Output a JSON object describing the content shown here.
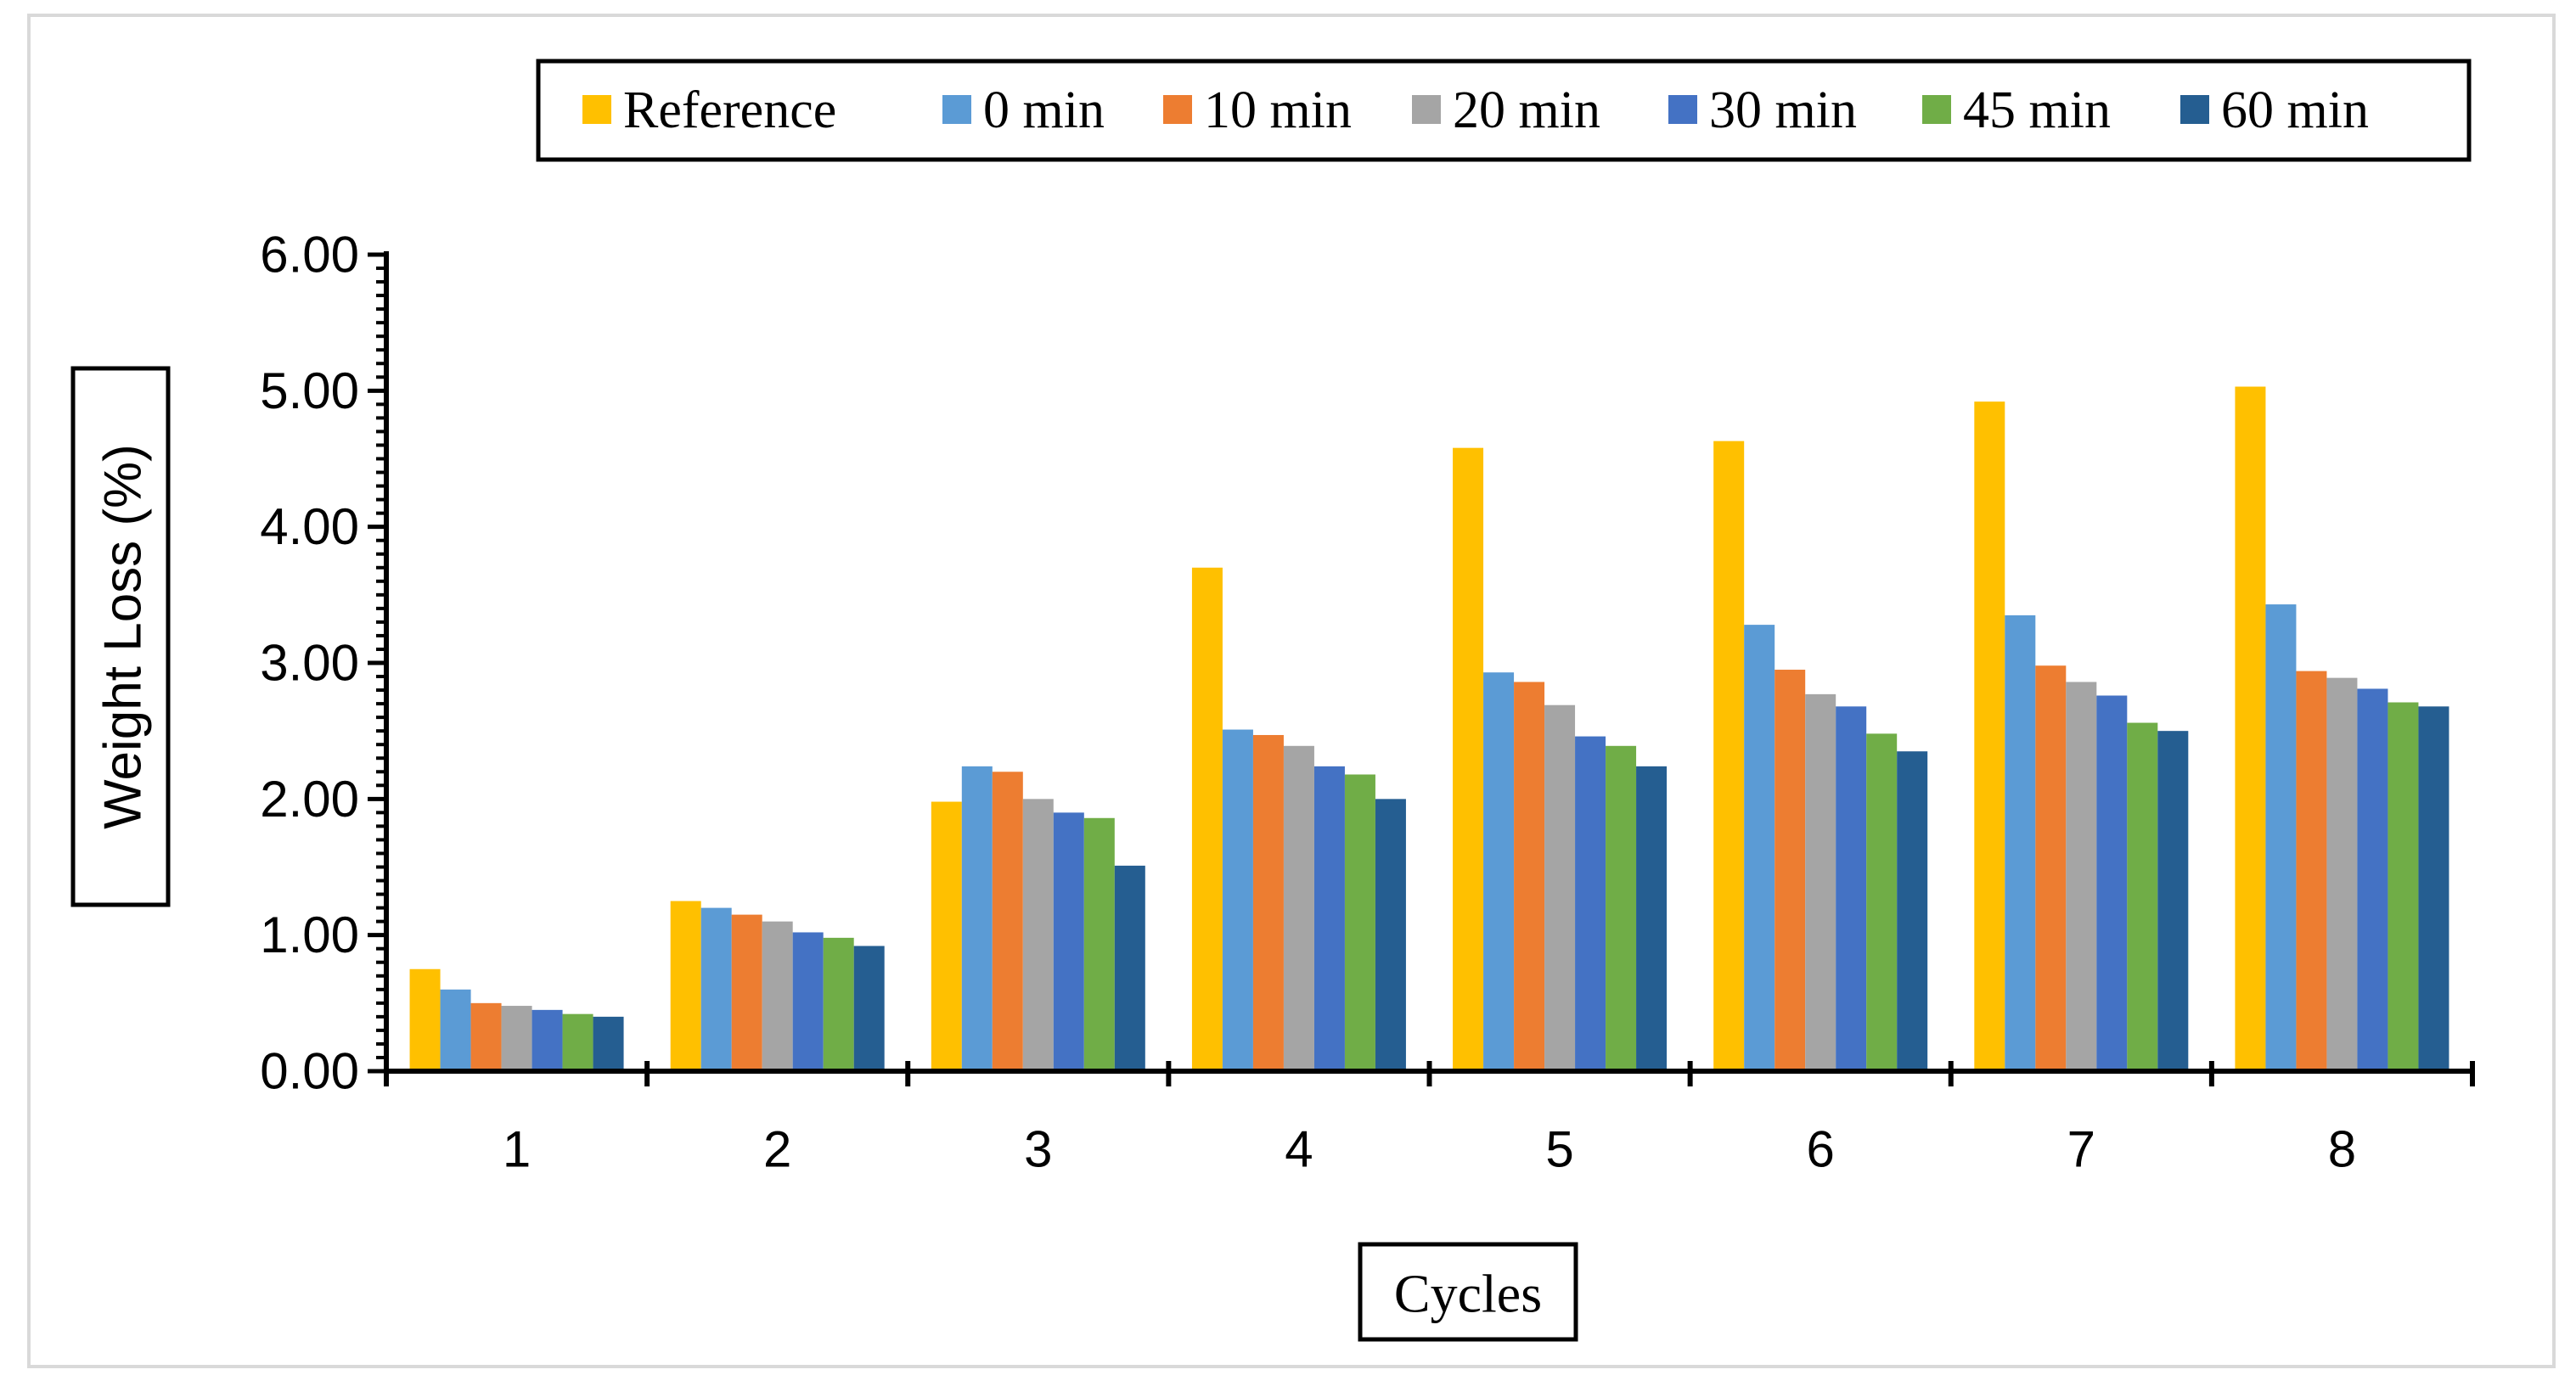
{
  "chart_data": {
    "type": "bar",
    "title": "",
    "xlabel": "Cycles",
    "ylabel": "Weight Loss (%)",
    "ylim": [
      0,
      6
    ],
    "y_ticks": [
      "0.00",
      "1.00",
      "2.00",
      "3.00",
      "4.00",
      "5.00",
      "6.00"
    ],
    "categories": [
      "1",
      "2",
      "3",
      "4",
      "5",
      "6",
      "7",
      "8"
    ],
    "legend_position": "top-right",
    "series": [
      {
        "name": "Reference",
        "color": "#FFC000",
        "values": [
          0.75,
          1.25,
          1.98,
          3.7,
          4.58,
          4.63,
          4.92,
          5.03
        ]
      },
      {
        "name": "0 min",
        "color": "#5B9BD5",
        "values": [
          0.6,
          1.2,
          2.24,
          2.51,
          2.93,
          3.28,
          3.35,
          3.43
        ]
      },
      {
        "name": "10 min",
        "color": "#ED7D31",
        "values": [
          0.5,
          1.15,
          2.2,
          2.47,
          2.86,
          2.95,
          2.98,
          2.94
        ]
      },
      {
        "name": "20 min",
        "color": "#A5A5A5",
        "values": [
          0.48,
          1.1,
          2.0,
          2.39,
          2.69,
          2.77,
          2.86,
          2.89
        ]
      },
      {
        "name": "30 min",
        "color": "#4472C4",
        "values": [
          0.45,
          1.02,
          1.9,
          2.24,
          2.46,
          2.68,
          2.76,
          2.81
        ]
      },
      {
        "name": "45 min",
        "color": "#70AD47",
        "values": [
          0.42,
          0.98,
          1.86,
          2.18,
          2.39,
          2.48,
          2.56,
          2.71
        ]
      },
      {
        "name": "60 min",
        "color": "#255E91",
        "values": [
          0.4,
          0.92,
          1.51,
          2.0,
          2.24,
          2.35,
          2.5,
          2.68
        ]
      }
    ]
  }
}
